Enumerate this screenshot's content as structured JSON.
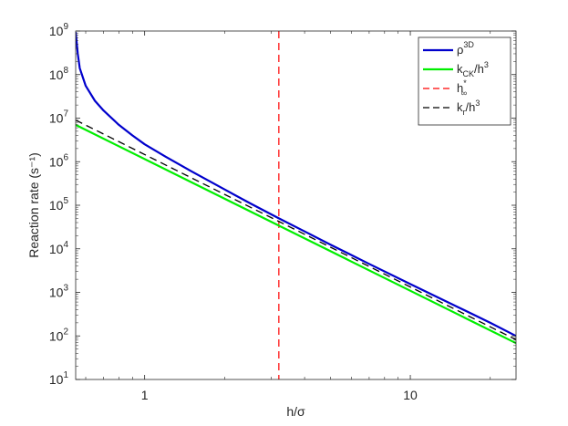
{
  "chart_data": {
    "type": "line",
    "title": "",
    "xlabel": "h/σ",
    "ylabel": "Reaction rate (s⁻¹)",
    "x_scale": "log",
    "y_scale": "log",
    "xlim": [
      0.55,
      25
    ],
    "ylim": [
      10,
      1000000000
    ],
    "x_ticks": [
      {
        "value": 1,
        "label": "1"
      },
      {
        "value": 10,
        "label": "10"
      }
    ],
    "y_ticks": [
      {
        "value": 10,
        "base": "10",
        "exp": "1"
      },
      {
        "value": 100,
        "base": "10",
        "exp": "2"
      },
      {
        "value": 1000,
        "base": "10",
        "exp": "3"
      },
      {
        "value": 10000,
        "base": "10",
        "exp": "4"
      },
      {
        "value": 100000,
        "base": "10",
        "exp": "5"
      },
      {
        "value": 1000000,
        "base": "10",
        "exp": "6"
      },
      {
        "value": 10000000,
        "base": "10",
        "exp": "7"
      },
      {
        "value": 100000000,
        "base": "10",
        "exp": "8"
      },
      {
        "value": 1000000000,
        "base": "10",
        "exp": "9"
      }
    ],
    "grid": false,
    "legend_position": "top-right",
    "series": [
      {
        "name": "ρ^3D",
        "legend": {
          "main": "ρ",
          "sup": "3D",
          "sub": ""
        },
        "color": "#0000cc",
        "dash": "solid",
        "x": [
          0.55,
          0.56,
          0.57,
          0.6,
          0.65,
          0.7,
          0.8,
          0.9,
          1.0,
          1.2,
          1.5,
          2.0,
          2.5,
          3.2,
          4.0,
          5.0,
          7.0,
          10.0,
          15.0,
          20.0,
          25.0
        ],
        "y": [
          950000000,
          300000000,
          140000000,
          55000000,
          25000000,
          15000000,
          7000000,
          4000000,
          2500000,
          1300000,
          600000,
          230000,
          110000,
          50000,
          25000,
          12500,
          4500,
          1550,
          470,
          200,
          100
        ]
      },
      {
        "name": "k_CK/h^3",
        "legend": {
          "main": "k",
          "sub": "CK",
          "tail": "/h",
          "tail_sup": "3"
        },
        "color": "#00ee00",
        "dash": "solid",
        "x": [
          0.55,
          25
        ],
        "y": [
          7000000,
          68
        ]
      },
      {
        "name": "k_r/h^3",
        "legend": {
          "main": "k",
          "sub": "r",
          "tail": "/h",
          "tail_sup": "3"
        },
        "color": "#000000",
        "dash": "dashed",
        "x": [
          0.55,
          25
        ],
        "y": [
          9000000,
          82
        ]
      }
    ],
    "vlines": [
      {
        "name": "h*_∞",
        "legend": {
          "main": "h",
          "sup": "*",
          "sub": "∞"
        },
        "color": "#ff0000",
        "dash": "dashed",
        "x": 3.2
      }
    ]
  }
}
